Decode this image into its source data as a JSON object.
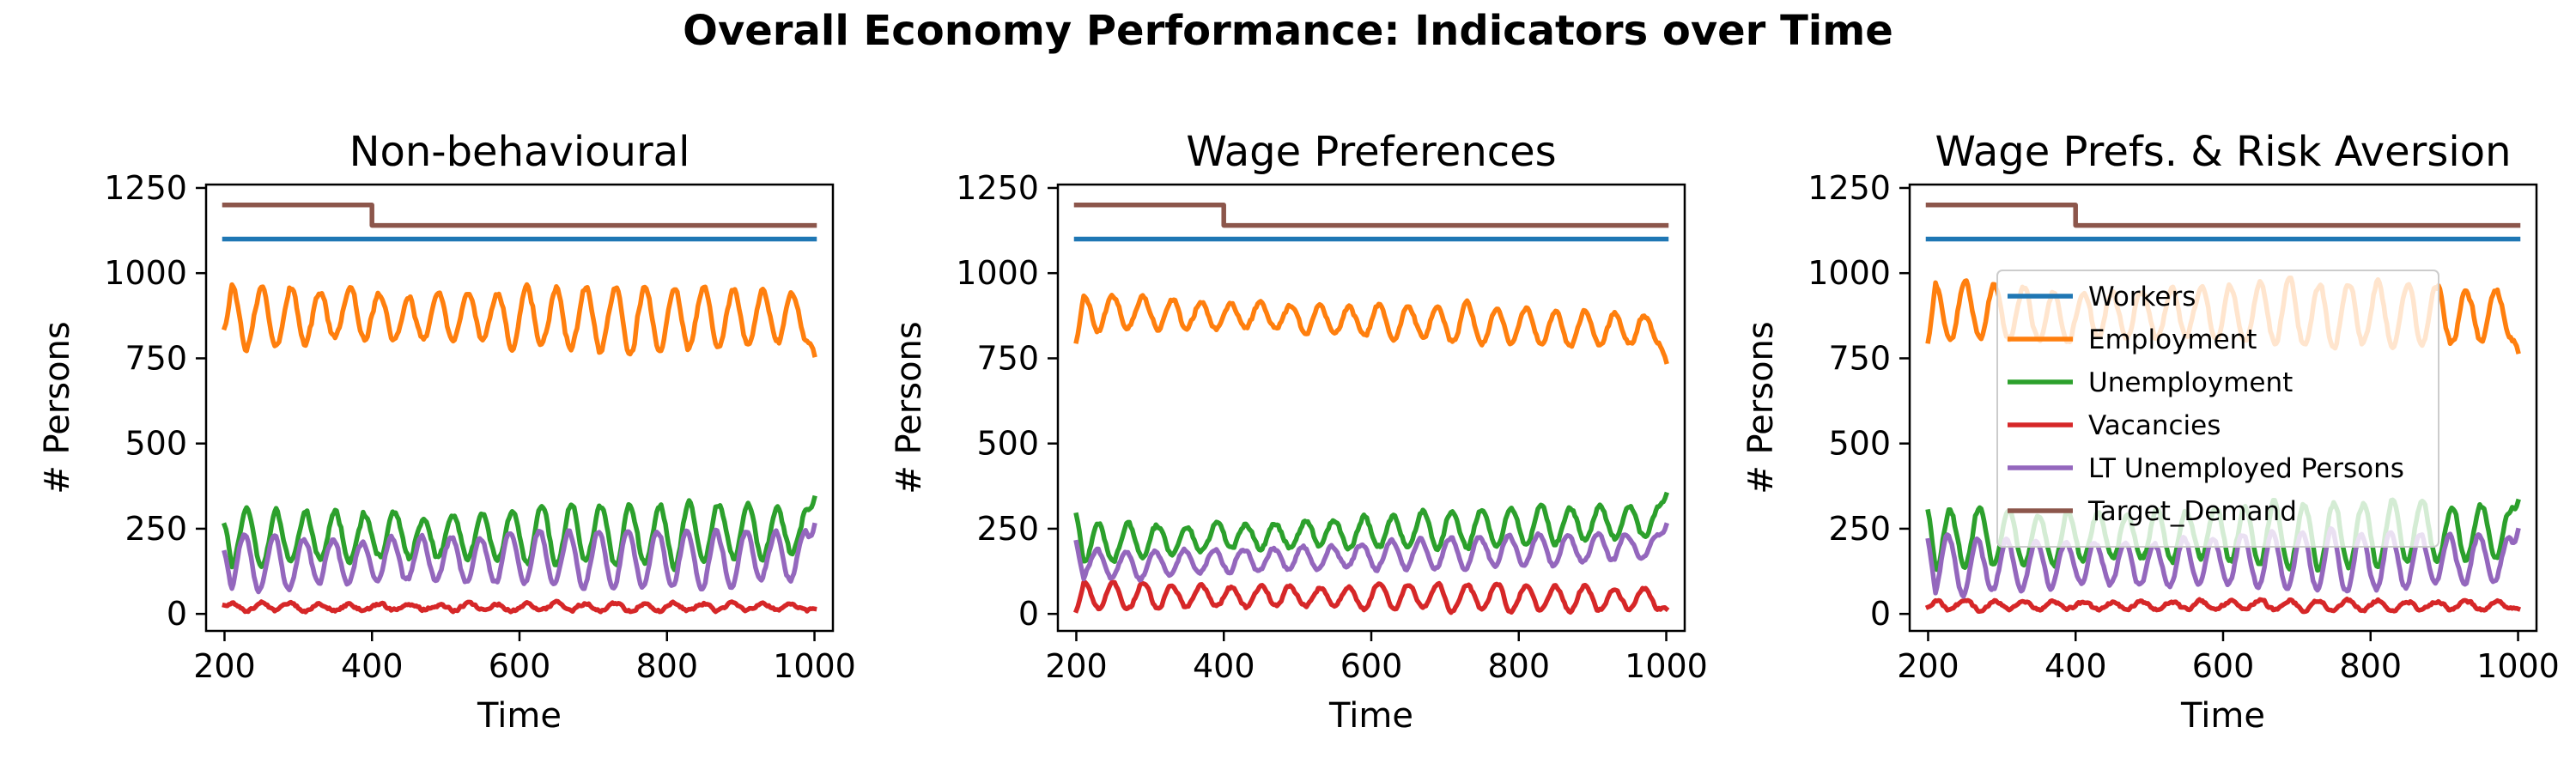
{
  "figure": {
    "title": "Overall Economy Performance: Indicators over Time"
  },
  "colors": {
    "Workers": "#1f77b4",
    "Employment": "#ff7f0e",
    "Unemployment": "#2ca02c",
    "Vacancies": "#d62728",
    "LT Unemployed Persons": "#9467bd",
    "Target_Demand": "#8c564b"
  },
  "chart_data": [
    {
      "type": "line",
      "title": "Non-behavioural",
      "xlabel": "Time",
      "ylabel": "# Persons",
      "xlim": [
        175,
        1025
      ],
      "ylim": [
        -50,
        1260
      ],
      "xticks": [
        200,
        400,
        600,
        800,
        1000
      ],
      "yticks": [
        0,
        250,
        500,
        750,
        1000,
        1250
      ],
      "legend": null,
      "series": [
        {
          "name": "Workers",
          "kind": "constant",
          "x": [
            200,
            1000
          ],
          "y": [
            1100,
            1100
          ]
        },
        {
          "name": "Target_Demand",
          "kind": "step",
          "x": [
            200,
            400,
            400,
            1000
          ],
          "y": [
            1200,
            1200,
            1140,
            1140
          ]
        },
        {
          "name": "Employment",
          "kind": "oscillation",
          "x_range": [
            200,
            1000
          ],
          "mean": 870,
          "amplitude": 95,
          "period": 40,
          "phase": 0.0,
          "trend": -10,
          "noise": 12,
          "start": 840,
          "end": 760
        },
        {
          "name": "Unemployment",
          "kind": "oscillation",
          "x_range": [
            200,
            1000
          ],
          "mean": 230,
          "amplitude": 90,
          "period": 40,
          "phase": 3.14,
          "trend": 20,
          "noise": 12,
          "start": 260,
          "end": 340
        },
        {
          "name": "LT Unemployed Persons",
          "kind": "oscillation",
          "x_range": [
            200,
            1000
          ],
          "mean": 160,
          "amplitude": 85,
          "period": 40,
          "phase": 3.6,
          "trend": 15,
          "noise": 8,
          "start": 180,
          "end": 260
        },
        {
          "name": "Vacancies",
          "kind": "oscillation",
          "x_range": [
            200,
            1000
          ],
          "mean": 20,
          "amplitude": 12,
          "period": 40,
          "phase": 0.0,
          "trend": 0,
          "noise": 8,
          "start": 25,
          "end": 15
        }
      ]
    },
    {
      "type": "line",
      "title": "Wage Preferences",
      "xlabel": "Time",
      "ylabel": "# Persons",
      "xlim": [
        175,
        1025
      ],
      "ylim": [
        -50,
        1260
      ],
      "xticks": [
        200,
        400,
        600,
        800,
        1000
      ],
      "yticks": [
        0,
        250,
        500,
        750,
        1000,
        1250
      ],
      "legend": null,
      "series": [
        {
          "name": "Workers",
          "kind": "constant",
          "x": [
            200,
            1000
          ],
          "y": [
            1100,
            1100
          ]
        },
        {
          "name": "Target_Demand",
          "kind": "step",
          "x": [
            200,
            400,
            400,
            1000
          ],
          "y": [
            1200,
            1200,
            1140,
            1140
          ]
        },
        {
          "name": "Employment",
          "kind": "oscillation",
          "x_range": [
            200,
            1000
          ],
          "mean": 860,
          "amplitude": 55,
          "period": 40,
          "phase": 0.0,
          "trend": -60,
          "noise": 10,
          "start": 800,
          "end": 740
        },
        {
          "name": "Unemployment",
          "kind": "oscillation",
          "x_range": [
            200,
            1000
          ],
          "mean": 240,
          "amplitude": 55,
          "period": 40,
          "phase": 3.14,
          "trend": 70,
          "noise": 10,
          "start": 290,
          "end": 350
        },
        {
          "name": "LT Unemployed Persons",
          "kind": "oscillation",
          "x_range": [
            200,
            1000
          ],
          "mean": 170,
          "amplitude": 45,
          "period": 40,
          "phase": 3.6,
          "trend": 60,
          "noise": 8,
          "start": 210,
          "end": 260
        },
        {
          "name": "Vacancies",
          "kind": "oscillation",
          "x_range": [
            200,
            1000
          ],
          "mean": 50,
          "amplitude": 40,
          "period": 40,
          "phase": 0.0,
          "trend": -10,
          "noise": 8,
          "start": 10,
          "end": 15
        }
      ]
    },
    {
      "type": "line",
      "title": "Wage Prefs. & Risk Aversion",
      "xlabel": "Time",
      "ylabel": "# Persons",
      "xlim": [
        175,
        1025
      ],
      "ylim": [
        -50,
        1260
      ],
      "xticks": [
        200,
        400,
        600,
        800,
        1000
      ],
      "yticks": [
        0,
        250,
        500,
        750,
        1000,
        1250
      ],
      "legend": "center-right",
      "series": [
        {
          "name": "Workers",
          "kind": "constant",
          "x": [
            200,
            1000
          ],
          "y": [
            1100,
            1100
          ]
        },
        {
          "name": "Target_Demand",
          "kind": "step",
          "x": [
            200,
            400,
            400,
            1000
          ],
          "y": [
            1200,
            1200,
            1140,
            1140
          ]
        },
        {
          "name": "Employment",
          "kind": "oscillation",
          "x_range": [
            200,
            1000
          ],
          "mean": 880,
          "amplitude": 95,
          "period": 40,
          "phase": 0.0,
          "trend": -10,
          "noise": 12,
          "start": 800,
          "end": 770
        },
        {
          "name": "Unemployment",
          "kind": "oscillation",
          "x_range": [
            200,
            1000
          ],
          "mean": 230,
          "amplitude": 95,
          "period": 40,
          "phase": 3.14,
          "trend": 20,
          "noise": 12,
          "start": 300,
          "end": 330
        },
        {
          "name": "LT Unemployed Persons",
          "kind": "oscillation",
          "x_range": [
            200,
            1000
          ],
          "mean": 150,
          "amplitude": 85,
          "period": 40,
          "phase": 3.6,
          "trend": 20,
          "noise": 8,
          "start": 215,
          "end": 245
        },
        {
          "name": "Vacancies",
          "kind": "oscillation",
          "x_range": [
            200,
            1000
          ],
          "mean": 25,
          "amplitude": 15,
          "period": 40,
          "phase": 0.0,
          "trend": 0,
          "noise": 8,
          "start": 20,
          "end": 15
        }
      ]
    }
  ]
}
